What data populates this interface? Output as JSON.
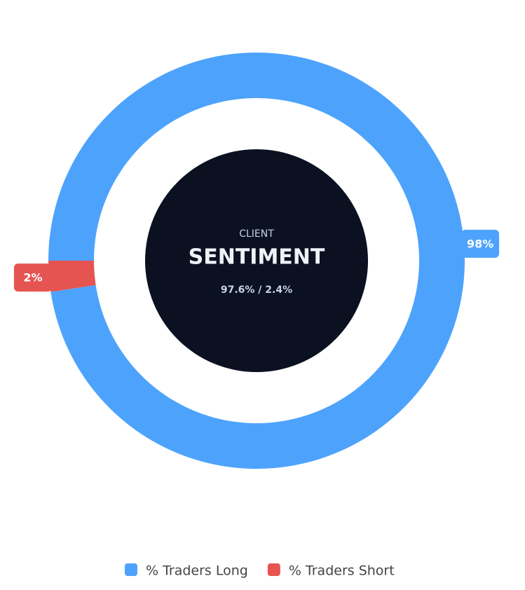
{
  "chart_data": {
    "type": "doughnut",
    "center_kicker": "CLIENT",
    "center_title": "SENTIMENT",
    "center_subtitle": "97.6% / 2.4%",
    "categories": [
      "% Traders Long",
      "% Traders Short"
    ],
    "values": [
      97.6,
      2.4
    ],
    "value_labels": [
      "98%",
      "2%"
    ],
    "colors": [
      "#4da3fc",
      "#e65452"
    ],
    "legend": "bottom"
  }
}
